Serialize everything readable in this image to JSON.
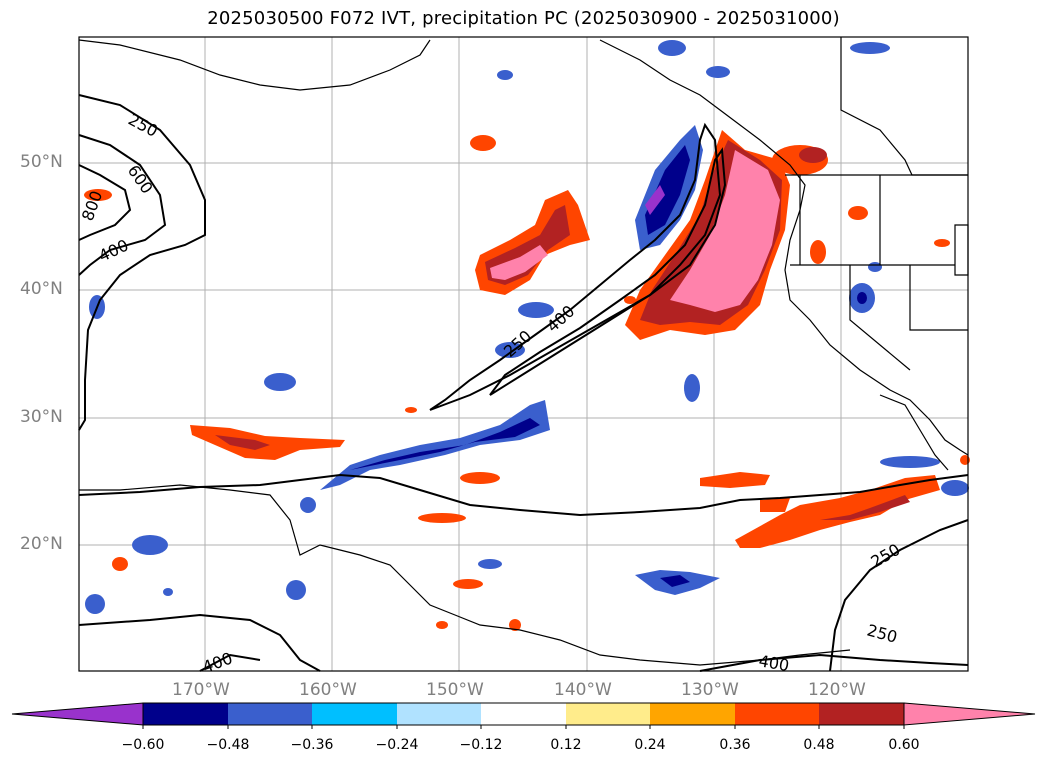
{
  "title": "2025030500 F072 IVT, precipitation PC (2025030900 - 2025031000)",
  "lat_labels": [
    "50°N",
    "40°N",
    "30°N",
    "20°N"
  ],
  "lon_labels": [
    "170°W",
    "160°W",
    "150°W",
    "140°W",
    "130°W",
    "120°W"
  ],
  "contour_labels": {
    "c250a": "250",
    "c600": "600",
    "c800": "800",
    "c400a": "400",
    "c250b": "250",
    "c400b": "400",
    "c250c": "250",
    "c250d": "250",
    "c400c": "400",
    "c400d": "400"
  },
  "colorbar": {
    "ticks": [
      "−0.60",
      "−0.48",
      "−0.36",
      "−0.24",
      "−0.12",
      "0.12",
      "0.24",
      "0.36",
      "0.48",
      "0.60"
    ],
    "colors": [
      "#9932cc",
      "#00008b",
      "#3a5fcd",
      "#00bfff",
      "#b0e2ff",
      "#ffffff",
      "#ffec8b",
      "#ffa500",
      "#ff4500",
      "#b22222",
      "#ff82ab"
    ]
  }
}
